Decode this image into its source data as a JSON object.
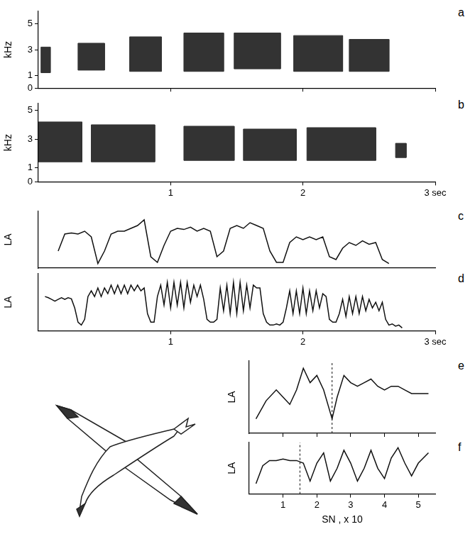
{
  "chart_data": [
    {
      "panel": "a",
      "type": "spectrogram",
      "y_label": "kHz",
      "color": "#333333",
      "xlim": [
        0,
        3
      ],
      "xticks": [
        1,
        2,
        3
      ],
      "ylim": [
        0,
        6
      ],
      "yticks": [
        0,
        1,
        3,
        5
      ],
      "tick_labels": "y",
      "grid": false,
      "segments": [
        {
          "t": [
            0.02,
            0.09
          ],
          "khz": [
            1.2,
            3.2
          ]
        },
        {
          "t": [
            0.3,
            0.5
          ],
          "khz": [
            1.4,
            3.5
          ]
        },
        {
          "t": [
            0.69,
            0.93
          ],
          "khz": [
            1.3,
            4.0
          ]
        },
        {
          "t": [
            1.1,
            1.4
          ],
          "khz": [
            1.3,
            4.3
          ]
        },
        {
          "t": [
            1.48,
            1.83
          ],
          "khz": [
            1.5,
            4.3
          ]
        },
        {
          "t": [
            1.93,
            2.3
          ],
          "khz": [
            1.3,
            4.1
          ]
        },
        {
          "t": [
            2.35,
            2.65
          ],
          "khz": [
            1.3,
            3.8
          ]
        }
      ]
    },
    {
      "panel": "b",
      "type": "spectrogram",
      "y_label": "kHz",
      "color": "#333333",
      "xlim": [
        0,
        3
      ],
      "xticks": [
        1,
        2,
        {
          "value": 3,
          "label": "3 sec"
        }
      ],
      "ylim": [
        0,
        5.5
      ],
      "yticks": [
        0,
        1,
        3,
        5
      ],
      "grid": false,
      "segments": [
        {
          "t": [
            0.0,
            0.33
          ],
          "khz": [
            1.4,
            4.2
          ]
        },
        {
          "t": [
            0.4,
            0.88
          ],
          "khz": [
            1.4,
            4.0
          ]
        },
        {
          "t": [
            1.1,
            1.48
          ],
          "khz": [
            1.5,
            3.9
          ]
        },
        {
          "t": [
            1.55,
            1.95
          ],
          "khz": [
            1.5,
            3.7
          ]
        },
        {
          "t": [
            2.03,
            2.55
          ],
          "khz": [
            1.5,
            3.8
          ]
        },
        {
          "t": [
            2.7,
            2.78
          ],
          "khz": [
            1.7,
            2.7
          ]
        }
      ]
    },
    {
      "panel": "c",
      "type": "line",
      "y_label": "LA",
      "color": "#111111",
      "xlim": [
        0,
        3
      ],
      "ylim": [
        0,
        10
      ],
      "tick_labels": false,
      "grid": false,
      "x": [
        0.15,
        0.2,
        0.25,
        0.3,
        0.35,
        0.4,
        0.45,
        0.5,
        0.55,
        0.6,
        0.65,
        0.7,
        0.75,
        0.8,
        0.85,
        0.9,
        0.95,
        1.0,
        1.05,
        1.1,
        1.15,
        1.2,
        1.25,
        1.3,
        1.35,
        1.4,
        1.45,
        1.5,
        1.55,
        1.6,
        1.65,
        1.7,
        1.75,
        1.8,
        1.85,
        1.9,
        1.95,
        2.0,
        2.05,
        2.1,
        2.15,
        2.2,
        2.25,
        2.3,
        2.35,
        2.4,
        2.45,
        2.5,
        2.55,
        2.6,
        2.65
      ],
      "values": [
        3,
        6,
        6.2,
        6,
        6.5,
        5.5,
        0.8,
        3,
        6,
        6.5,
        6.5,
        7,
        7.5,
        8.5,
        2,
        1,
        4,
        6.5,
        7,
        6.8,
        7.2,
        6.5,
        7,
        6.5,
        2,
        3,
        7,
        7.5,
        7,
        8,
        7.5,
        7,
        3,
        1,
        1,
        4.5,
        5.5,
        5,
        5.5,
        5,
        5.5,
        2,
        1.5,
        3.5,
        4.5,
        4,
        4.8,
        4.2,
        4.5,
        1.5,
        0.8
      ]
    },
    {
      "panel": "d",
      "type": "line",
      "y_label": "LA",
      "color": "#111111",
      "xlim": [
        0,
        3
      ],
      "xticks": [
        1,
        2,
        {
          "value": 3,
          "label": "3 sec"
        }
      ],
      "ylim": [
        0,
        10
      ],
      "tick_labels": "x",
      "grid": false,
      "x": [
        0.05,
        0.075,
        0.1,
        0.125,
        0.15,
        0.175,
        0.2,
        0.225,
        0.25,
        0.275,
        0.3,
        0.325,
        0.35,
        0.375,
        0.4,
        0.425,
        0.45,
        0.475,
        0.5,
        0.525,
        0.55,
        0.575,
        0.6,
        0.625,
        0.65,
        0.675,
        0.7,
        0.725,
        0.75,
        0.775,
        0.8,
        0.825,
        0.85,
        0.875,
        0.9,
        0.925,
        0.95,
        0.975,
        1.0,
        1.025,
        1.05,
        1.075,
        1.1,
        1.125,
        1.15,
        1.175,
        1.2,
        1.225,
        1.25,
        1.275,
        1.3,
        1.325,
        1.35,
        1.375,
        1.4,
        1.425,
        1.45,
        1.475,
        1.5,
        1.525,
        1.55,
        1.575,
        1.6,
        1.625,
        1.65,
        1.675,
        1.7,
        1.725,
        1.75,
        1.775,
        1.8,
        1.825,
        1.85,
        1.875,
        1.9,
        1.925,
        1.95,
        1.975,
        2.0,
        2.025,
        2.05,
        2.075,
        2.1,
        2.125,
        2.15,
        2.175,
        2.2,
        2.225,
        2.25,
        2.275,
        2.3,
        2.325,
        2.35,
        2.375,
        2.4,
        2.425,
        2.45,
        2.475,
        2.5,
        2.525,
        2.55,
        2.575,
        2.6,
        2.625,
        2.65,
        2.675,
        2.7,
        2.725,
        2.75
      ],
      "values": [
        6,
        5.8,
        5.5,
        5.2,
        5.5,
        5.8,
        5.5,
        5.8,
        5.6,
        4,
        1.5,
        1,
        2,
        6,
        7,
        6,
        7.5,
        6,
        7.5,
        6.5,
        8,
        6.5,
        8,
        6.5,
        8,
        6.5,
        8,
        7,
        8,
        7,
        7.5,
        3,
        1.5,
        1.5,
        6,
        8,
        4.5,
        8.5,
        4,
        8.5,
        4.5,
        8.5,
        4,
        8.5,
        5,
        8,
        6,
        8,
        5.5,
        2,
        1.5,
        1.5,
        2,
        7.5,
        3.5,
        8,
        3,
        8.5,
        3,
        8.5,
        3.5,
        8,
        4,
        8,
        7.5,
        7.5,
        3,
        1.5,
        1,
        1,
        1.2,
        1,
        1.5,
        4,
        7,
        3,
        7,
        3,
        7.5,
        3,
        7,
        3.5,
        7,
        4,
        6.5,
        6,
        2,
        1.5,
        1.5,
        3,
        5.5,
        2.5,
        6,
        3,
        6,
        3,
        6,
        3.5,
        5.5,
        4,
        5,
        3.5,
        5,
        2,
        1,
        1.2,
        0.8,
        1,
        0.5
      ]
    },
    {
      "panel": "e",
      "type": "line",
      "y_label": "LA",
      "color": "#111111",
      "xlim": [
        0,
        5.5
      ],
      "xticks": [
        1,
        2,
        3,
        4,
        5
      ],
      "ylim": [
        0,
        10
      ],
      "tick_labels": false,
      "grid": false,
      "reference_x": 2.45,
      "x": [
        0.2,
        0.5,
        0.8,
        1.0,
        1.2,
        1.4,
        1.6,
        1.8,
        2.0,
        2.2,
        2.45,
        2.6,
        2.8,
        3.0,
        3.2,
        3.4,
        3.6,
        3.8,
        4.0,
        4.2,
        4.4,
        4.6,
        4.8,
        5.0,
        5.3
      ],
      "values": [
        2,
        4.5,
        6,
        5,
        4,
        6,
        9,
        7,
        8,
        6,
        2,
        5,
        8,
        7,
        6.5,
        7,
        7.5,
        6.5,
        6,
        6.5,
        6.5,
        6,
        5.5,
        5.5,
        5.5
      ]
    },
    {
      "panel": "f",
      "type": "line",
      "y_label": "LA",
      "x_label": "SN , x 10",
      "color": "#111111",
      "xlim": [
        0,
        5.5
      ],
      "xticks": [
        1,
        2,
        3,
        4,
        5
      ],
      "ylim": [
        0,
        10
      ],
      "tick_labels": "x",
      "grid": false,
      "reference_x": 1.5,
      "x": [
        0.2,
        0.4,
        0.6,
        0.8,
        1.0,
        1.2,
        1.4,
        1.6,
        1.8,
        2.0,
        2.2,
        2.4,
        2.6,
        2.8,
        3.0,
        3.2,
        3.4,
        3.6,
        3.8,
        4.0,
        4.2,
        4.4,
        4.6,
        4.8,
        5.0,
        5.3
      ],
      "values": [
        2,
        5.5,
        6.5,
        6.5,
        6.8,
        6.5,
        6.5,
        6,
        2.5,
        6,
        8,
        2.5,
        5,
        8.5,
        6,
        2.5,
        5,
        8.5,
        5,
        3,
        7,
        9,
        6,
        3.5,
        6,
        8
      ]
    }
  ]
}
